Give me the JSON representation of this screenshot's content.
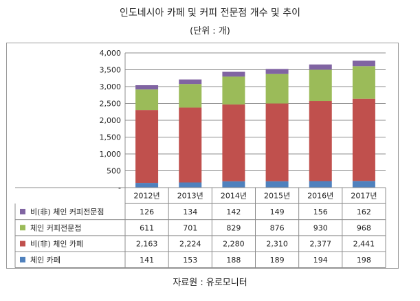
{
  "title": "인도네시아 카페 및 커피 전문점 개수 및 추이",
  "unit": "(단위 : 개)",
  "source": "자료원 : 유로모니터",
  "chart_data": {
    "type": "bar",
    "stacked": true,
    "title": "인도네시아 카페 및 커피 전문점 개수 및 추이",
    "categories": [
      "2012년",
      "2013년",
      "2014년",
      "2015년",
      "2016년",
      "2017년"
    ],
    "ylim": [
      0,
      4000
    ],
    "yticks": [
      0,
      500,
      1000,
      1500,
      2000,
      2500,
      3000,
      3500,
      4000
    ],
    "ytick_labels": [
      "-",
      "500",
      "1,000",
      "1,500",
      "2,000",
      "2,500",
      "3,000",
      "3,500",
      "4,000"
    ],
    "grid": true,
    "series": [
      {
        "name": "체인 카페",
        "color": "#4f81bd",
        "values": [
          141,
          153,
          188,
          189,
          194,
          198
        ],
        "labels": [
          "141",
          "153",
          "188",
          "189",
          "194",
          "198"
        ]
      },
      {
        "name": "비(非) 체인 카페",
        "color": "#c0504d",
        "values": [
          2163,
          2224,
          2280,
          2310,
          2377,
          2441
        ],
        "labels": [
          "2,163",
          "2,224",
          "2,280",
          "2,310",
          "2,377",
          "2,441"
        ]
      },
      {
        "name": "체인 커피전문점",
        "color": "#9bbb59",
        "values": [
          611,
          701,
          829,
          876,
          930,
          968
        ],
        "labels": [
          "611",
          "701",
          "829",
          "876",
          "930",
          "968"
        ]
      },
      {
        "name": "비(非) 체인 커피전문점",
        "color": "#8064a2",
        "values": [
          126,
          134,
          142,
          149,
          156,
          162
        ],
        "labels": [
          "126",
          "134",
          "142",
          "149",
          "156",
          "162"
        ]
      }
    ]
  }
}
